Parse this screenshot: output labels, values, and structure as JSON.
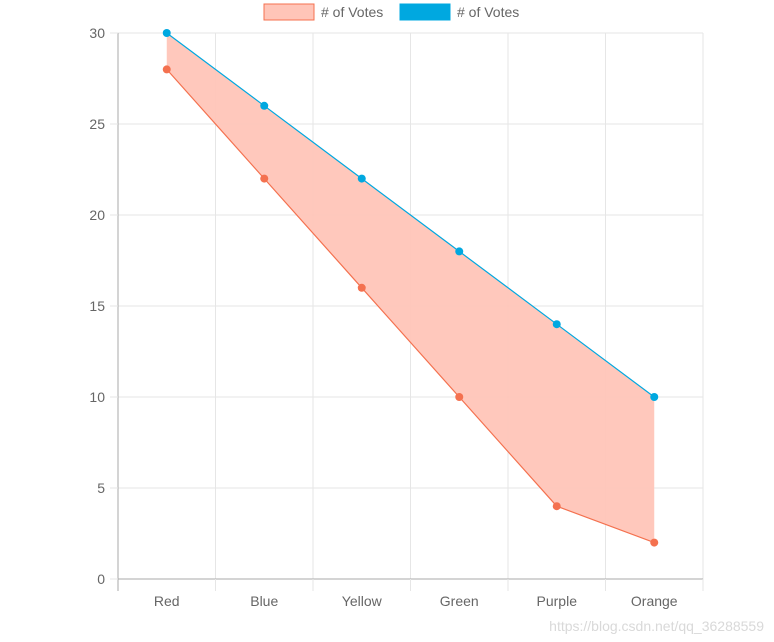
{
  "chart_data": {
    "type": "line",
    "categories": [
      "Red",
      "Blue",
      "Yellow",
      "Green",
      "Purple",
      "Orange"
    ],
    "series": [
      {
        "name": "# of Votes",
        "values": [
          28,
          22,
          16,
          10,
          4,
          2
        ],
        "color": "#f4714f",
        "fill_color": "#ffc5b8"
      },
      {
        "name": "# of Votes",
        "values": [
          30,
          26,
          22,
          18,
          14,
          10
        ],
        "color": "#00a8e0",
        "fill_color": "#00a8e0"
      }
    ],
    "fill_between": true,
    "ylim": [
      0,
      30
    ],
    "yticks": [
      0,
      5,
      10,
      15,
      20,
      25,
      30
    ],
    "grid": true,
    "legend": "top-center",
    "title": "",
    "xlabel": "",
    "ylabel": ""
  },
  "watermark": "https://blog.csdn.net/qq_36288559"
}
